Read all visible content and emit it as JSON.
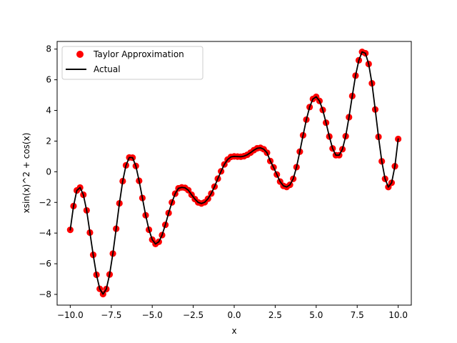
{
  "chart_data": {
    "type": "line",
    "xlabel": "x",
    "ylabel": "xsin(x)^2 + cos(x)",
    "xlim": [
      -10.8,
      10.8
    ],
    "ylim": [
      -8.7,
      8.5
    ],
    "xticks": [
      -10.0,
      -7.5,
      -5.0,
      -2.5,
      0.0,
      2.5,
      5.0,
      7.5,
      10.0
    ],
    "xtick_labels": [
      "−10.0",
      "−7.5",
      "−5.0",
      "−2.5",
      "0.0",
      "2.5",
      "5.0",
      "7.5",
      "10.0"
    ],
    "yticks": [
      -8,
      -6,
      -4,
      -2,
      0,
      2,
      4,
      6,
      8
    ],
    "ytick_labels": [
      "−8",
      "−6",
      "−4",
      "−2",
      "0",
      "2",
      "4",
      "6",
      "8"
    ],
    "legend_position": "top-left",
    "grid": false,
    "series": [
      {
        "name": "Taylor Approximation",
        "kind": "markers",
        "color": "#ff0000",
        "marker": "circle",
        "points": [
          [
            -10.0,
            -3.79
          ],
          [
            -9.8,
            -2.24
          ],
          [
            -9.6,
            -1.22
          ],
          [
            -9.4,
            -1.03
          ],
          [
            -9.2,
            -1.5
          ],
          [
            -9.0,
            -2.52
          ],
          [
            -8.8,
            -3.97
          ],
          [
            -8.6,
            -5.42
          ],
          [
            -8.4,
            -6.72
          ],
          [
            -8.2,
            -7.64
          ],
          [
            -8.0,
            -7.98
          ],
          [
            -7.8,
            -7.65
          ],
          [
            -7.6,
            -6.7
          ],
          [
            -7.4,
            -5.34
          ],
          [
            -7.2,
            -3.72
          ],
          [
            -7.0,
            -2.06
          ],
          [
            -6.8,
            -0.61
          ],
          [
            -6.6,
            0.42
          ],
          [
            -6.4,
            0.93
          ],
          [
            -6.2,
            0.92
          ],
          [
            -6.0,
            0.38
          ],
          [
            -5.8,
            -0.59
          ],
          [
            -5.6,
            -1.71
          ],
          [
            -5.4,
            -2.84
          ],
          [
            -5.2,
            -3.78
          ],
          [
            -5.0,
            -4.43
          ],
          [
            -4.8,
            -4.71
          ],
          [
            -4.6,
            -4.57
          ],
          [
            -4.4,
            -4.13
          ],
          [
            -4.2,
            -3.46
          ],
          [
            -4.0,
            -2.69
          ],
          [
            -3.8,
            -2.0
          ],
          [
            -3.6,
            -1.43
          ],
          [
            -3.4,
            -1.08
          ],
          [
            -3.2,
            -1.02
          ],
          [
            -3.0,
            -1.05
          ],
          [
            -2.8,
            -1.2
          ],
          [
            -2.6,
            -1.5
          ],
          [
            -2.4,
            -1.78
          ],
          [
            -2.2,
            -2.0
          ],
          [
            -2.0,
            -2.07
          ],
          [
            -1.8,
            -1.99
          ],
          [
            -1.6,
            -1.76
          ],
          [
            -1.4,
            -1.42
          ],
          [
            -1.2,
            -0.97
          ],
          [
            -1.0,
            -0.45
          ],
          [
            -0.8,
            0.03
          ],
          [
            -0.6,
            0.48
          ],
          [
            -0.4,
            0.8
          ],
          [
            -0.2,
            0.97
          ],
          [
            0.0,
            1.0
          ],
          [
            0.2,
            0.99
          ],
          [
            0.4,
            0.98
          ],
          [
            0.6,
            1.02
          ],
          [
            0.8,
            1.11
          ],
          [
            1.0,
            1.25
          ],
          [
            1.2,
            1.41
          ],
          [
            1.4,
            1.53
          ],
          [
            1.6,
            1.56
          ],
          [
            1.8,
            1.47
          ],
          [
            2.0,
            1.24
          ],
          [
            2.2,
            0.7
          ],
          [
            2.4,
            0.29
          ],
          [
            2.6,
            -0.18
          ],
          [
            2.8,
            -0.64
          ],
          [
            3.0,
            -0.92
          ],
          [
            3.2,
            -0.99
          ],
          [
            3.4,
            -0.85
          ],
          [
            3.6,
            -0.46
          ],
          [
            3.8,
            0.3
          ],
          [
            4.0,
            1.31
          ],
          [
            4.2,
            2.38
          ],
          [
            4.4,
            3.4
          ],
          [
            4.6,
            4.22
          ],
          [
            4.8,
            4.75
          ],
          [
            5.0,
            4.89
          ],
          [
            5.2,
            4.62
          ],
          [
            5.4,
            4.03
          ],
          [
            5.6,
            3.2
          ],
          [
            5.8,
            2.3
          ],
          [
            6.0,
            1.52
          ],
          [
            6.2,
            1.08
          ],
          [
            6.4,
            1.08
          ],
          [
            6.6,
            1.47
          ],
          [
            6.8,
            2.32
          ],
          [
            7.0,
            3.56
          ],
          [
            7.2,
            4.94
          ],
          [
            7.4,
            6.27
          ],
          [
            7.6,
            7.27
          ],
          [
            7.8,
            7.82
          ],
          [
            8.0,
            7.73
          ],
          [
            8.2,
            7.03
          ],
          [
            8.4,
            5.77
          ],
          [
            8.6,
            4.06
          ],
          [
            8.8,
            2.28
          ],
          [
            9.0,
            0.68
          ],
          [
            9.2,
            -0.46
          ],
          [
            9.4,
            -1.0
          ],
          [
            9.6,
            -0.72
          ],
          [
            9.8,
            0.36
          ],
          [
            10.0,
            2.14
          ]
        ]
      },
      {
        "name": "Actual",
        "kind": "line",
        "color": "#000000",
        "points": [
          [
            -10.0,
            -3.79
          ],
          [
            -9.8,
            -2.24
          ],
          [
            -9.6,
            -1.22
          ],
          [
            -9.4,
            -1.03
          ],
          [
            -9.2,
            -1.5
          ],
          [
            -9.0,
            -2.52
          ],
          [
            -8.8,
            -3.97
          ],
          [
            -8.6,
            -5.42
          ],
          [
            -8.4,
            -6.72
          ],
          [
            -8.2,
            -7.64
          ],
          [
            -8.0,
            -7.98
          ],
          [
            -7.8,
            -7.65
          ],
          [
            -7.6,
            -6.7
          ],
          [
            -7.4,
            -5.34
          ],
          [
            -7.2,
            -3.72
          ],
          [
            -7.0,
            -2.06
          ],
          [
            -6.8,
            -0.61
          ],
          [
            -6.6,
            0.42
          ],
          [
            -6.4,
            0.93
          ],
          [
            -6.2,
            0.92
          ],
          [
            -6.0,
            0.38
          ],
          [
            -5.8,
            -0.59
          ],
          [
            -5.6,
            -1.71
          ],
          [
            -5.4,
            -2.84
          ],
          [
            -5.2,
            -3.78
          ],
          [
            -5.0,
            -4.43
          ],
          [
            -4.8,
            -4.71
          ],
          [
            -4.6,
            -4.57
          ],
          [
            -4.4,
            -4.13
          ],
          [
            -4.2,
            -3.46
          ],
          [
            -4.0,
            -2.69
          ],
          [
            -3.8,
            -2.0
          ],
          [
            -3.6,
            -1.43
          ],
          [
            -3.4,
            -1.08
          ],
          [
            -3.2,
            -1.02
          ],
          [
            -3.0,
            -1.05
          ],
          [
            -2.8,
            -1.2
          ],
          [
            -2.6,
            -1.5
          ],
          [
            -2.4,
            -1.78
          ],
          [
            -2.2,
            -2.0
          ],
          [
            -2.0,
            -2.07
          ],
          [
            -1.8,
            -1.99
          ],
          [
            -1.6,
            -1.76
          ],
          [
            -1.4,
            -1.42
          ],
          [
            -1.2,
            -0.97
          ],
          [
            -1.0,
            -0.45
          ],
          [
            -0.8,
            0.03
          ],
          [
            -0.6,
            0.48
          ],
          [
            -0.4,
            0.8
          ],
          [
            -0.2,
            0.97
          ],
          [
            0.0,
            1.0
          ],
          [
            0.2,
            0.99
          ],
          [
            0.4,
            0.98
          ],
          [
            0.6,
            1.02
          ],
          [
            0.8,
            1.11
          ],
          [
            1.0,
            1.25
          ],
          [
            1.2,
            1.41
          ],
          [
            1.4,
            1.53
          ],
          [
            1.6,
            1.56
          ],
          [
            1.8,
            1.47
          ],
          [
            2.0,
            1.24
          ],
          [
            2.2,
            0.7
          ],
          [
            2.4,
            0.29
          ],
          [
            2.6,
            -0.18
          ],
          [
            2.8,
            -0.64
          ],
          [
            3.0,
            -0.92
          ],
          [
            3.2,
            -0.99
          ],
          [
            3.4,
            -0.85
          ],
          [
            3.6,
            -0.46
          ],
          [
            3.8,
            0.3
          ],
          [
            4.0,
            1.31
          ],
          [
            4.2,
            2.38
          ],
          [
            4.4,
            3.4
          ],
          [
            4.6,
            4.22
          ],
          [
            4.8,
            4.75
          ],
          [
            5.0,
            4.89
          ],
          [
            5.2,
            4.62
          ],
          [
            5.4,
            4.03
          ],
          [
            5.6,
            3.2
          ],
          [
            5.8,
            2.3
          ],
          [
            6.0,
            1.52
          ],
          [
            6.2,
            1.08
          ],
          [
            6.4,
            1.08
          ],
          [
            6.6,
            1.47
          ],
          [
            6.8,
            2.32
          ],
          [
            7.0,
            3.56
          ],
          [
            7.2,
            4.94
          ],
          [
            7.4,
            6.27
          ],
          [
            7.6,
            7.27
          ],
          [
            7.8,
            7.82
          ],
          [
            8.0,
            7.73
          ],
          [
            8.2,
            7.03
          ],
          [
            8.4,
            5.77
          ],
          [
            8.6,
            4.06
          ],
          [
            8.8,
            2.28
          ],
          [
            9.0,
            0.68
          ],
          [
            9.2,
            -0.46
          ],
          [
            9.4,
            -1.0
          ],
          [
            9.6,
            -0.72
          ],
          [
            9.8,
            0.36
          ],
          [
            10.0,
            2.14
          ]
        ]
      }
    ]
  }
}
